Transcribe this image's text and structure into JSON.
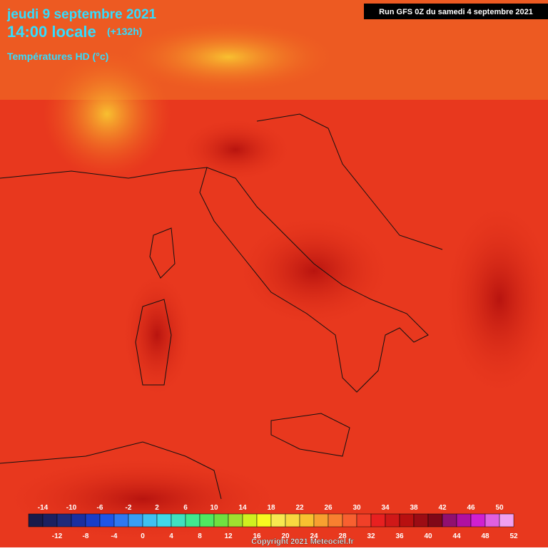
{
  "header": {
    "date": "jeudi 9 septembre 2021",
    "time": "14:00 locale",
    "lead": "(+132h)",
    "field": "Températures HD (°c)",
    "run": "Run GFS 0Z du samedi 4 septembre 2021"
  },
  "legend": {
    "top_labels": [
      -14,
      -10,
      -6,
      -2,
      2,
      6,
      10,
      14,
      18,
      22,
      26,
      30,
      34,
      38,
      42,
      46,
      50
    ],
    "bottom_labels": [
      -12,
      -8,
      -4,
      0,
      4,
      8,
      12,
      16,
      20,
      24,
      28,
      32,
      36,
      40,
      44,
      48,
      52
    ],
    "range": [
      -16,
      52
    ],
    "step": 2,
    "colors": [
      "#1a1a4a",
      "#1c2060",
      "#1f2a7a",
      "#1a2fa0",
      "#1a3dc8",
      "#1f55e6",
      "#2f78f0",
      "#3a9ef2",
      "#3fc0f0",
      "#40d8e8",
      "#40e0c0",
      "#40e890",
      "#50e860",
      "#70e040",
      "#a0e030",
      "#d0f020",
      "#f8f820",
      "#f8e850",
      "#f8d840",
      "#f8c030",
      "#f8a030",
      "#f88030",
      "#f86030",
      "#f04028",
      "#e82020",
      "#d01818",
      "#b81010",
      "#9c0c14",
      "#800818",
      "#901070",
      "#b010a0",
      "#d020d0",
      "#e060e0",
      "#f0a0f0"
    ]
  },
  "footer": {
    "copyright": "Copyright 2021 Meteociel.fr"
  }
}
